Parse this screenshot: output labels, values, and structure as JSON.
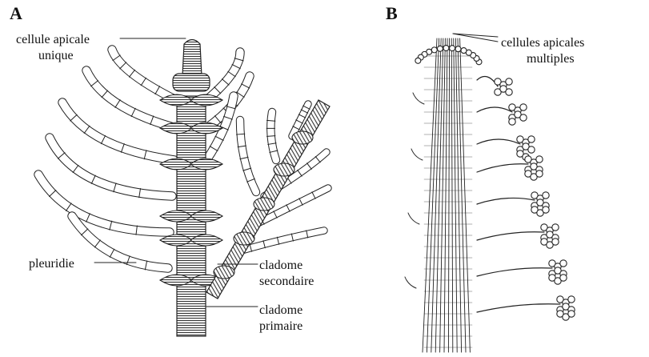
{
  "panels": {
    "a": {
      "letter": "A",
      "labels": {
        "apical_line1": "cellule apicale",
        "apical_line2": "unique",
        "pleuridie": "pleuridie",
        "secondary_line1": "cladome",
        "secondary_line2": "secondaire",
        "primary_line1": "cladome",
        "primary_line2": "primaire"
      }
    },
    "b": {
      "letter": "B",
      "labels": {
        "apical_line1": "cellules apicales",
        "apical_line2": "multiples"
      }
    }
  }
}
